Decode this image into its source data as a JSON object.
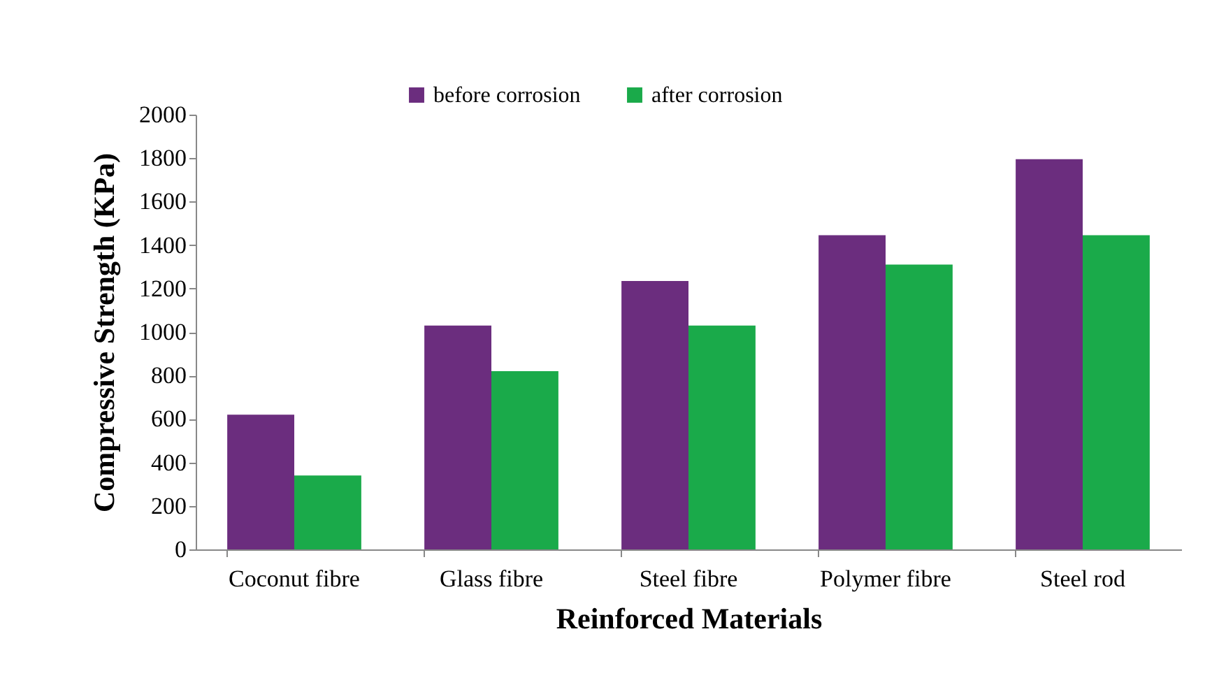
{
  "chart_data": {
    "type": "bar",
    "xlabel": "Reinforced Materials",
    "ylabel": "Compressive Strength (KPa)",
    "categories": [
      "Coconut fibre",
      "Glass fibre",
      "Steel fibre",
      "Polymer fibre",
      "Steel rod"
    ],
    "series": [
      {
        "name": "before corrosion",
        "color": "#6b2d7e",
        "values": [
          620,
          1030,
          1235,
          1445,
          1795
        ]
      },
      {
        "name": "after corrosion",
        "color": "#1aaa4a",
        "values": [
          340,
          820,
          1030,
          1310,
          1445
        ]
      }
    ],
    "ylim": [
      0,
      2000
    ],
    "yticks": [
      0,
      200,
      400,
      600,
      800,
      1000,
      1200,
      1400,
      1600,
      1800,
      2000
    ],
    "grid": false,
    "legend": "top"
  }
}
